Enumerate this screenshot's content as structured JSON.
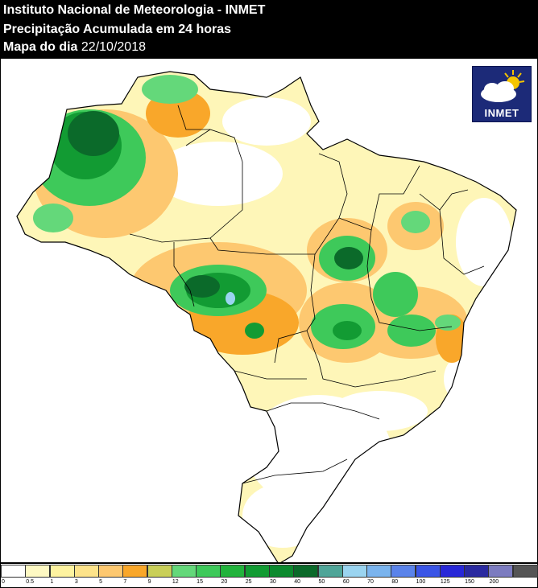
{
  "header": {
    "line1": "Instituto Nacional de Meteorologia - INMET",
    "line2": "Precipitação Acumulada em 24 horas",
    "line3_label": "Mapa do dia",
    "line3_date": "22/10/2018"
  },
  "logo": {
    "text": "INMET",
    "icon": "sun-cloud-icon",
    "bg_color": "#1c2a78"
  },
  "legend": {
    "classes": [
      {
        "label": "0",
        "color": "#ffffff"
      },
      {
        "label": "0.5",
        "color": "#fef9c3"
      },
      {
        "label": "1",
        "color": "#fef3a0"
      },
      {
        "label": "3",
        "color": "#fde38a"
      },
      {
        "label": "5",
        "color": "#fdc870"
      },
      {
        "label": "7",
        "color": "#f9a72a"
      },
      {
        "label": "9",
        "color": "#c9cf58"
      },
      {
        "label": "12",
        "color": "#64d87a"
      },
      {
        "label": "15",
        "color": "#3ec95a"
      },
      {
        "label": "20",
        "color": "#22b33c"
      },
      {
        "label": "25",
        "color": "#129b33"
      },
      {
        "label": "30",
        "color": "#0c8a2e"
      },
      {
        "label": "40",
        "color": "#0b6a2a"
      },
      {
        "label": "50",
        "color": "#4fa598"
      },
      {
        "label": "60",
        "color": "#9ad4f0"
      },
      {
        "label": "70",
        "color": "#7ab4ee"
      },
      {
        "label": "80",
        "color": "#5a83ea"
      },
      {
        "label": "100",
        "color": "#3a55e6"
      },
      {
        "label": "125",
        "color": "#2828d8"
      },
      {
        "label": "150",
        "color": "#2a2aa0"
      },
      {
        "label": "200",
        "color": "#7c7cc0"
      },
      {
        "label": "",
        "color": "#555555"
      }
    ]
  }
}
